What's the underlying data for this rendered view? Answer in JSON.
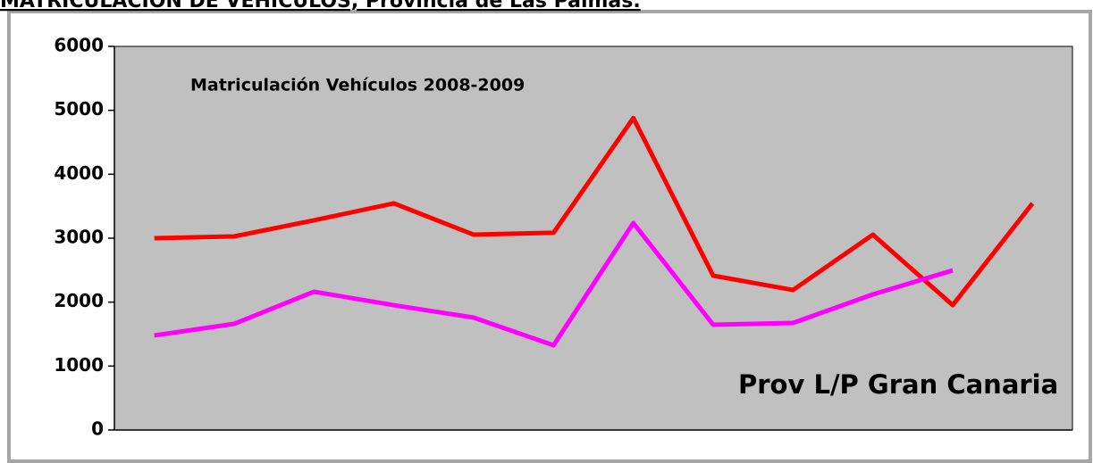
{
  "chart_data": {
    "type": "line",
    "title": "MATRICULACIÓN DE VEHÍCULOS, Provincia de Las Palmas.",
    "annotations": [
      "Matriculación Vehículos 2008-2009",
      "Prov L/P Gran Canaria"
    ],
    "categories": [
      null,
      null,
      null,
      null,
      null,
      null,
      null,
      null,
      null,
      null,
      null,
      null
    ],
    "series": [
      {
        "color": "#ff0000",
        "values": [
          3000,
          3028,
          3280,
          3545,
          3055,
          3085,
          4880,
          2414,
          2190,
          3055,
          1953,
          3545
        ]
      },
      {
        "color": "#ff00ff",
        "values": [
          1479,
          1660,
          2163,
          1953,
          1758,
          1325,
          3237,
          1646,
          1674,
          2121,
          2497,
          null
        ]
      }
    ],
    "ylim": [
      0,
      6000
    ],
    "yticks": [
      0,
      1000,
      2000,
      3000,
      4000,
      5000,
      6000
    ],
    "plot_background": "#c0c0c0"
  }
}
